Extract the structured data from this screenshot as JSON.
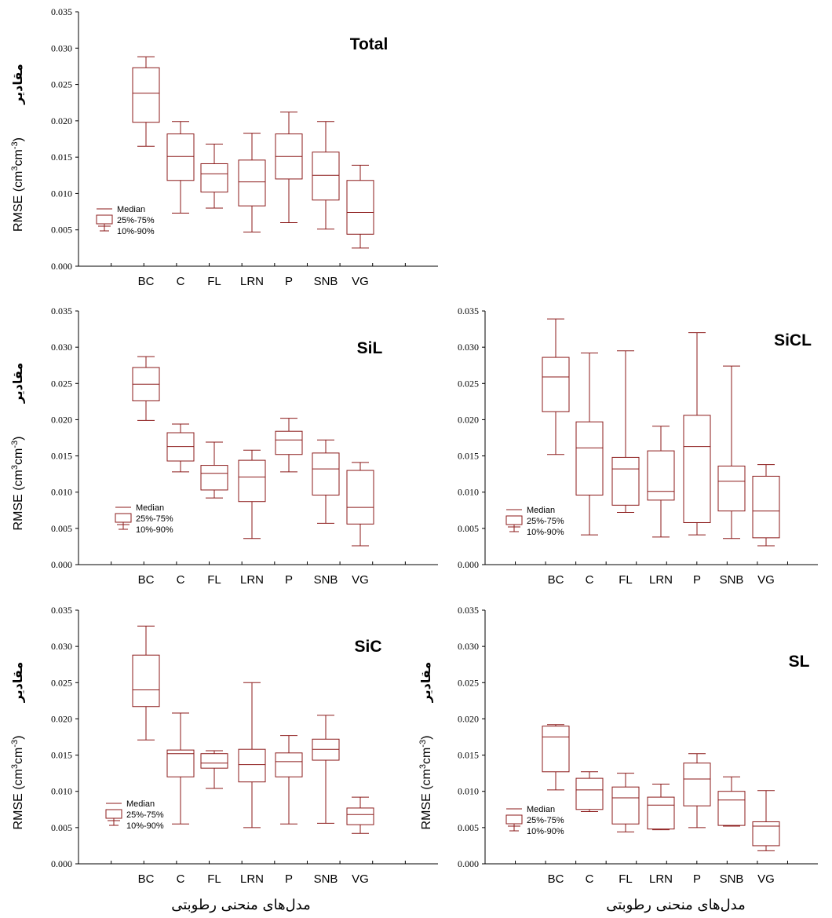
{
  "figure": {
    "y_axis_label_persian": "مقادیر",
    "y_axis_label_prefix": "RMSE (cm",
    "y_axis_label_unit_a": "3",
    "y_axis_label_unit_mid": "cm",
    "y_axis_label_unit_b": "-3",
    "y_axis_label_suffix": ")",
    "x_axis_label": "مدل‌های منحنی رطوبتی",
    "legend": {
      "median": "Median",
      "box": "25%-75%",
      "whisker": "10%-90%"
    },
    "colors": {
      "box_stroke": "#8b1a1a",
      "axis": "#000000"
    }
  },
  "chart_data": [
    {
      "type": "box",
      "title": "Total",
      "categories": [
        "BC",
        "C",
        "FL",
        "LRN",
        "P",
        "SNB",
        "VG"
      ],
      "ylim": [
        0,
        0.035
      ],
      "yticks": [
        "0.000",
        "0.005",
        "0.010",
        "0.015",
        "0.020",
        "0.025",
        "0.030",
        "0.035"
      ],
      "boxes": [
        {
          "p10": 0.0165,
          "q1": 0.0198,
          "median": 0.0238,
          "q3": 0.0273,
          "p90": 0.0288
        },
        {
          "p10": 0.0073,
          "q1": 0.0118,
          "median": 0.0151,
          "q3": 0.0182,
          "p90": 0.0199
        },
        {
          "p10": 0.008,
          "q1": 0.0102,
          "median": 0.0127,
          "q3": 0.0141,
          "p90": 0.0168
        },
        {
          "p10": 0.0047,
          "q1": 0.0083,
          "median": 0.0116,
          "q3": 0.0146,
          "p90": 0.0183
        },
        {
          "p10": 0.006,
          "q1": 0.012,
          "median": 0.0151,
          "q3": 0.0182,
          "p90": 0.0212
        },
        {
          "p10": 0.0051,
          "q1": 0.0091,
          "median": 0.0125,
          "q3": 0.0157,
          "p90": 0.0199
        },
        {
          "p10": 0.0025,
          "q1": 0.0044,
          "median": 0.0074,
          "q3": 0.0118,
          "p90": 0.0139
        }
      ]
    },
    {
      "type": "box",
      "title": "SiL",
      "categories": [
        "BC",
        "C",
        "FL",
        "LRN",
        "P",
        "SNB",
        "VG"
      ],
      "ylim": [
        0,
        0.035
      ],
      "yticks": [
        "0.000",
        "0.005",
        "0.010",
        "0.015",
        "0.020",
        "0.025",
        "0.030",
        "0.035"
      ],
      "boxes": [
        {
          "p10": 0.0199,
          "q1": 0.0226,
          "median": 0.0249,
          "q3": 0.0272,
          "p90": 0.0287
        },
        {
          "p10": 0.0128,
          "q1": 0.0143,
          "median": 0.0163,
          "q3": 0.0182,
          "p90": 0.0194
        },
        {
          "p10": 0.0092,
          "q1": 0.0103,
          "median": 0.0126,
          "q3": 0.0137,
          "p90": 0.0169
        },
        {
          "p10": 0.0036,
          "q1": 0.0087,
          "median": 0.0121,
          "q3": 0.0144,
          "p90": 0.0158
        },
        {
          "p10": 0.0128,
          "q1": 0.0152,
          "median": 0.0172,
          "q3": 0.0184,
          "p90": 0.0202
        },
        {
          "p10": 0.0057,
          "q1": 0.0096,
          "median": 0.0132,
          "q3": 0.0154,
          "p90": 0.0172
        },
        {
          "p10": 0.0026,
          "q1": 0.0056,
          "median": 0.0079,
          "q3": 0.013,
          "p90": 0.0141
        }
      ]
    },
    {
      "type": "box",
      "title": "SiCL",
      "categories": [
        "BC",
        "C",
        "FL",
        "LRN",
        "P",
        "SNB",
        "VG"
      ],
      "ylim": [
        0,
        0.035
      ],
      "yticks": [
        "0.000",
        "0.005",
        "0.010",
        "0.015",
        "0.020",
        "0.025",
        "0.030",
        "0.035"
      ],
      "boxes": [
        {
          "p10": 0.0152,
          "q1": 0.0211,
          "median": 0.0259,
          "q3": 0.0286,
          "p90": 0.0339
        },
        {
          "p10": 0.0041,
          "q1": 0.0096,
          "median": 0.0161,
          "q3": 0.0197,
          "p90": 0.0292
        },
        {
          "p10": 0.0072,
          "q1": 0.0082,
          "median": 0.0132,
          "q3": 0.0148,
          "p90": 0.0295
        },
        {
          "p10": 0.0038,
          "q1": 0.0089,
          "median": 0.0101,
          "q3": 0.0157,
          "p90": 0.0191
        },
        {
          "p10": 0.0041,
          "q1": 0.0058,
          "median": 0.0163,
          "q3": 0.0206,
          "p90": 0.032
        },
        {
          "p10": 0.0036,
          "q1": 0.0074,
          "median": 0.0115,
          "q3": 0.0136,
          "p90": 0.0274
        },
        {
          "p10": 0.0026,
          "q1": 0.0037,
          "median": 0.0074,
          "q3": 0.0122,
          "p90": 0.0138
        }
      ]
    },
    {
      "type": "box",
      "title": "SiC",
      "categories": [
        "BC",
        "C",
        "FL",
        "LRN",
        "P",
        "SNB",
        "VG"
      ],
      "ylim": [
        0,
        0.035
      ],
      "yticks": [
        "0.000",
        "0.005",
        "0.010",
        "0.015",
        "0.020",
        "0.025",
        "0.030",
        "0.035"
      ],
      "boxes": [
        {
          "p10": 0.0171,
          "q1": 0.0217,
          "median": 0.024,
          "q3": 0.0288,
          "p90": 0.0328
        },
        {
          "p10": 0.0055,
          "q1": 0.012,
          "median": 0.0152,
          "q3": 0.0157,
          "p90": 0.0208
        },
        {
          "p10": 0.0104,
          "q1": 0.0132,
          "median": 0.0139,
          "q3": 0.0152,
          "p90": 0.0156
        },
        {
          "p10": 0.005,
          "q1": 0.0113,
          "median": 0.0137,
          "q3": 0.0158,
          "p90": 0.025
        },
        {
          "p10": 0.0055,
          "q1": 0.012,
          "median": 0.0141,
          "q3": 0.0153,
          "p90": 0.0177
        },
        {
          "p10": 0.0056,
          "q1": 0.0143,
          "median": 0.0158,
          "q3": 0.0172,
          "p90": 0.0205
        },
        {
          "p10": 0.0042,
          "q1": 0.0054,
          "median": 0.0068,
          "q3": 0.0077,
          "p90": 0.0092
        }
      ]
    },
    {
      "type": "box",
      "title": "SL",
      "categories": [
        "BC",
        "C",
        "FL",
        "LRN",
        "P",
        "SNB",
        "VG"
      ],
      "ylim": [
        0,
        0.035
      ],
      "yticks": [
        "0.000",
        "0.005",
        "0.010",
        "0.015",
        "0.020",
        "0.025",
        "0.030",
        "0.035"
      ],
      "boxes": [
        {
          "p10": 0.0102,
          "q1": 0.0127,
          "median": 0.0175,
          "q3": 0.019,
          "p90": 0.0192
        },
        {
          "p10": 0.0072,
          "q1": 0.0075,
          "median": 0.0102,
          "q3": 0.0118,
          "p90": 0.0127
        },
        {
          "p10": 0.0044,
          "q1": 0.0055,
          "median": 0.0091,
          "q3": 0.0106,
          "p90": 0.0125
        },
        {
          "p10": 0.0047,
          "q1": 0.0048,
          "median": 0.0081,
          "q3": 0.0092,
          "p90": 0.011
        },
        {
          "p10": 0.005,
          "q1": 0.008,
          "median": 0.0117,
          "q3": 0.0139,
          "p90": 0.0152
        },
        {
          "p10": 0.0052,
          "q1": 0.0053,
          "median": 0.0088,
          "q3": 0.01,
          "p90": 0.012
        },
        {
          "p10": 0.0018,
          "q1": 0.0025,
          "median": 0.0052,
          "q3": 0.0058,
          "p90": 0.0101
        }
      ]
    }
  ]
}
